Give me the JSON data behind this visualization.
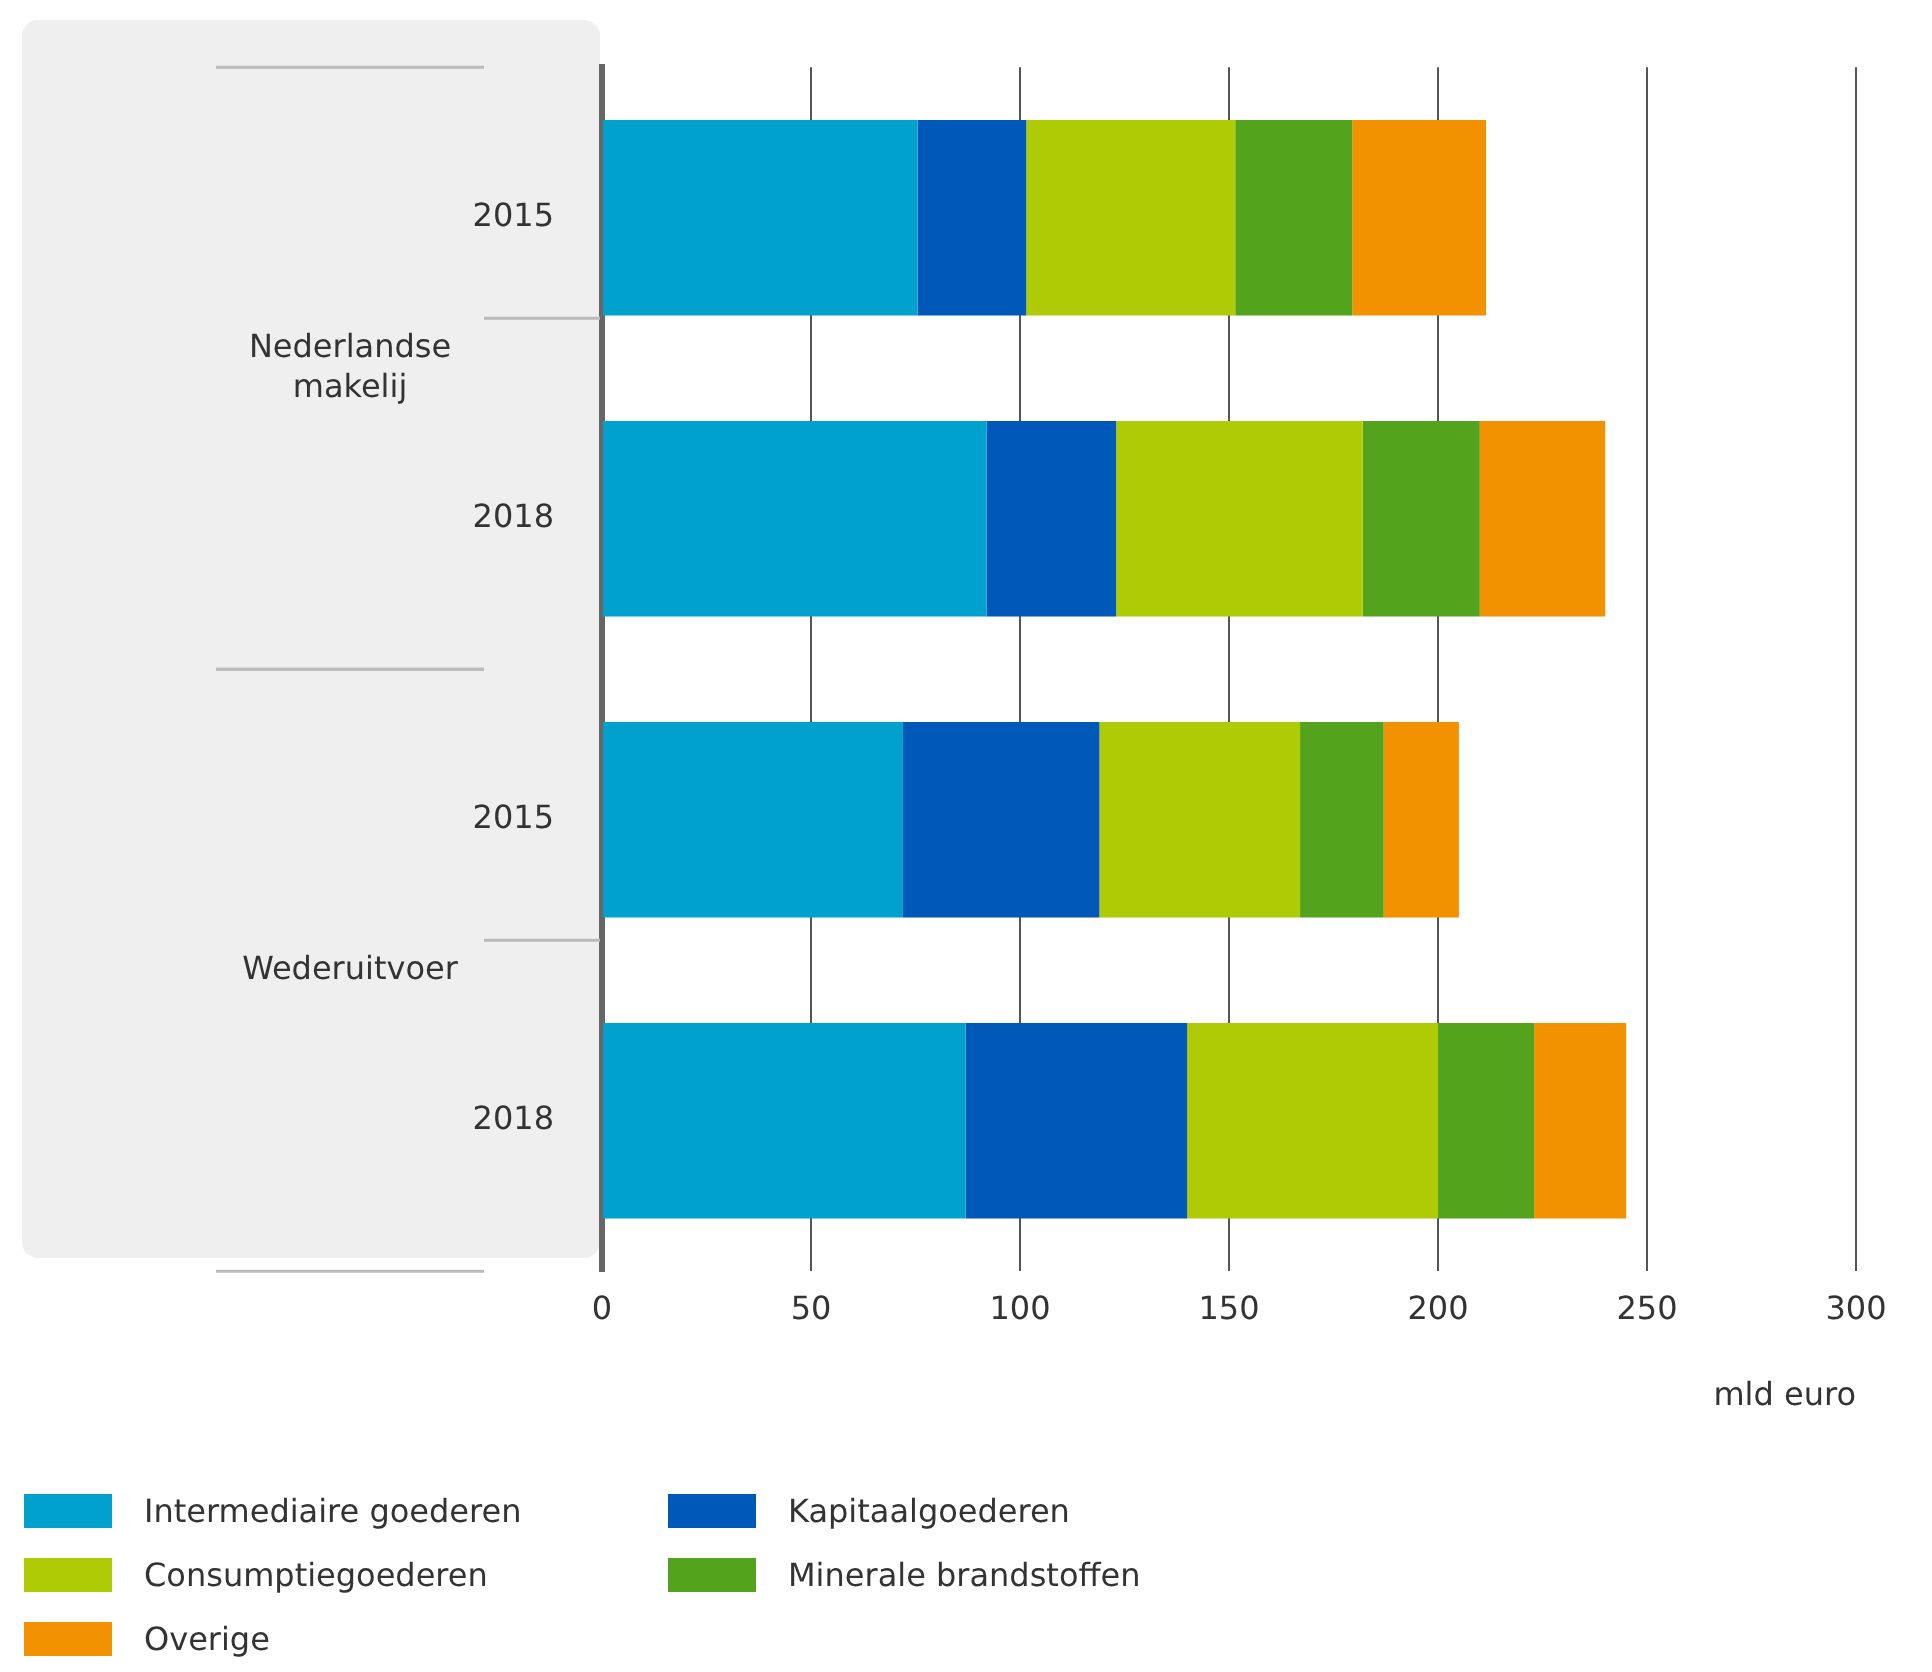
{
  "chart_data": {
    "type": "bar",
    "orientation": "horizontal",
    "stacked": true,
    "categories": [
      "2015",
      "2018",
      "2015",
      "2018"
    ],
    "series": [
      {
        "name": "Intermediaire goederen",
        "color": "#00a1cd",
        "values": [
          75.5,
          92,
          72,
          87
        ]
      },
      {
        "name": "Kapitaalgoederen",
        "color": "#0058b8",
        "values": [
          26,
          31,
          47,
          53
        ]
      },
      {
        "name": "Consumptiegoederen",
        "color": "#afcb05",
        "values": [
          50,
          59,
          48,
          60
        ]
      },
      {
        "name": "Minerale brandstoffen",
        "color": "#53a31d",
        "values": [
          28,
          28,
          20,
          23
        ]
      },
      {
        "name": "Overige",
        "color": "#f39200",
        "values": [
          32,
          30,
          18,
          22
        ]
      }
    ],
    "xlim": [
      0,
      300
    ],
    "xticks": [
      0,
      50,
      100,
      150,
      200,
      250,
      300
    ],
    "xlabel": "mld euro",
    "annotations": [
      "Nederlandse makelij",
      "Wederuitvoer"
    ],
    "grid": "x",
    "legend": "bottom"
  }
}
